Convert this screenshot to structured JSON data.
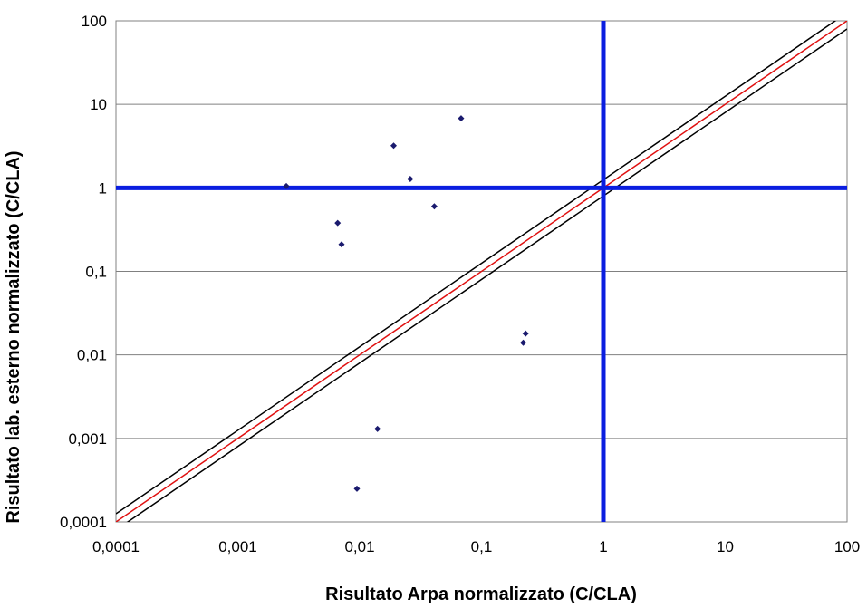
{
  "chart_data": {
    "type": "scatter",
    "title": "",
    "xlabel": "Risultato Arpa normalizzato (C/CLA)",
    "ylabel": "Risultato lab. esterno normalizzato (C/CLA)",
    "x_scale": "log",
    "y_scale": "log",
    "xlim": [
      0.0001,
      100
    ],
    "ylim": [
      0.0001,
      100
    ],
    "x_tick_labels": [
      "0,0001",
      "0,001",
      "0,01",
      "0,1",
      "1",
      "10",
      "100"
    ],
    "y_tick_labels": [
      "0,0001",
      "0,001",
      "0,01",
      "0,1",
      "1",
      "10",
      "100"
    ],
    "grid": "horizontal",
    "legend": "none",
    "colors": {
      "points": "#1a1a6e",
      "threshold_lines": "#0a1ee0",
      "identity_line": "#e01010",
      "tolerance_lines": "#000000",
      "gridlines": "#808080"
    },
    "series": [
      {
        "points": [
          {
            "x": 0.0025,
            "y": 1.05
          },
          {
            "x": 0.0066,
            "y": 0.38
          },
          {
            "x": 0.0071,
            "y": 0.21
          },
          {
            "x": 0.0095,
            "y": 0.00025
          },
          {
            "x": 0.014,
            "y": 0.0013
          },
          {
            "x": 0.019,
            "y": 3.2
          },
          {
            "x": 0.026,
            "y": 1.28
          },
          {
            "x": 0.041,
            "y": 0.6
          },
          {
            "x": 0.068,
            "y": 6.8
          },
          {
            "x": 0.22,
            "y": 0.014
          },
          {
            "x": 0.23,
            "y": 0.018
          }
        ]
      }
    ],
    "reference_lines": {
      "vertical_x": 1,
      "horizontal_y": 1,
      "identity_factor": 1,
      "tolerance_factors": [
        0.8,
        1.25
      ]
    }
  }
}
